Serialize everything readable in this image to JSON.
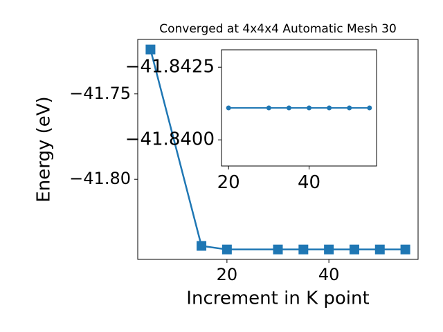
{
  "chart_data": [
    {
      "type": "line",
      "title": "Converged at 4x4x4 Automatic Mesh 30",
      "xlabel": "Increment in K point",
      "ylabel": "Energy (eV)",
      "x": [
        5,
        15,
        20,
        30,
        35,
        40,
        45,
        50,
        55
      ],
      "series": [
        {
          "color": "#1f77b4",
          "marker": "square",
          "values": [
            -41.724,
            -41.839,
            -41.8411,
            -41.8411,
            -41.8411,
            -41.8411,
            -41.8411,
            -41.8411,
            -41.8411
          ]
        }
      ],
      "xlim": [
        2.5,
        57.5
      ],
      "xticks": [
        20,
        40
      ],
      "ylim": [
        -41.8469,
        -41.7181
      ],
      "yticks": [
        {
          "value": -41.8,
          "label": "−41.80"
        },
        {
          "value": -41.75,
          "label": "−41.75"
        }
      ]
    },
    {
      "type": "line",
      "x": [
        20,
        30,
        35,
        40,
        45,
        50,
        55
      ],
      "series": [
        {
          "color": "#1f77b4",
          "marker": "circle",
          "values": [
            -41.8411,
            -41.8411,
            -41.8411,
            -41.8411,
            -41.8411,
            -41.8411,
            -41.8411
          ]
        }
      ],
      "xlim": [
        18.25,
        56.75
      ],
      "xticks": [
        20,
        40
      ],
      "ylim": [
        -41.8391,
        -41.8431
      ],
      "yticks": [
        {
          "value": -41.84,
          "label": "−41.8400"
        },
        {
          "value": -41.8425,
          "label": "−41.8425"
        }
      ]
    }
  ]
}
